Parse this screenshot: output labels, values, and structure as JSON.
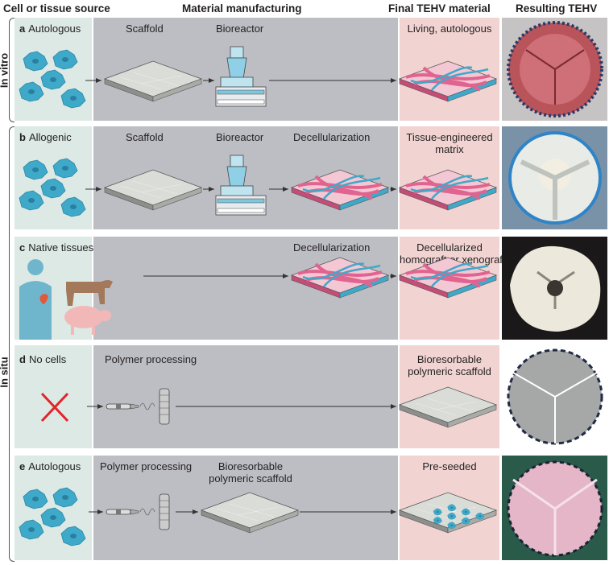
{
  "headers": {
    "cell_source": "Cell or tissue source",
    "manufacturing": "Material manufacturing",
    "final_material": "Final TEHV material",
    "resulting": "Resulting TEHV"
  },
  "side_labels": {
    "in_vitro": "In vitro",
    "in_situ": "In situ"
  },
  "rows": [
    {
      "letter": "a",
      "source": "Autologous",
      "steps": [
        "Scaffold",
        "Bioreactor"
      ],
      "final": "Living, autologous"
    },
    {
      "letter": "b",
      "source": "Allogenic",
      "steps": [
        "Scaffold",
        "Bioreactor",
        "Decellularization"
      ],
      "final_line1": "Tissue-engineered",
      "final_line2": "matrix"
    },
    {
      "letter": "c",
      "source": "Native tissues",
      "steps": [
        "Decellularization"
      ],
      "final_line1": "Decellularized",
      "final_line2": "homograft or xenograft"
    },
    {
      "letter": "d",
      "source": "No cells",
      "steps": [
        "Polymer processing"
      ],
      "final_line1": "Bioresorbable",
      "final_line2": "polymeric scaffold"
    },
    {
      "letter": "e",
      "source": "Autologous",
      "steps": [
        "Polymer processing"
      ],
      "step2_line1": "Bioresorbable",
      "step2_line2": "polymeric scaffold",
      "final": "Pre-seeded"
    }
  ],
  "colors": {
    "source_bg": "#dce9e5",
    "manufacturing_bg": "#bcbec4",
    "final_bg": "#f1d4d2",
    "cell": "#3fa9c9",
    "fiber_pink": "#e0648f",
    "scaffold": "#d9dcd7",
    "cross": "#e0262b"
  }
}
